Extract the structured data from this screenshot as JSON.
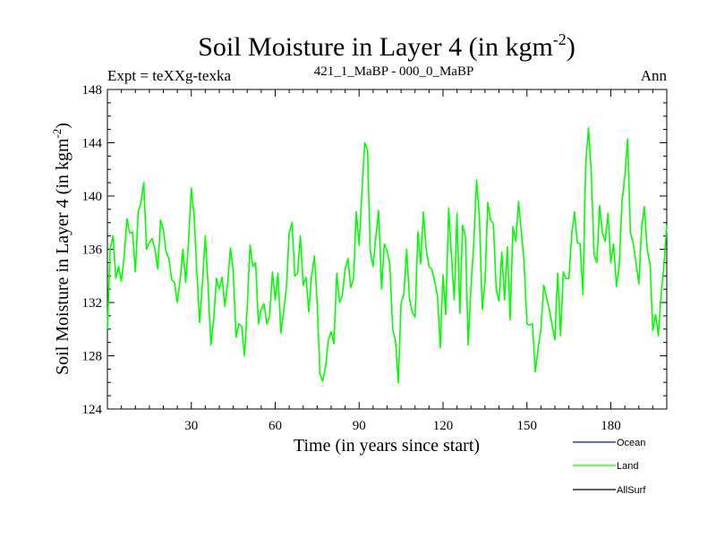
{
  "header": {
    "title_main": "Soil Moisture in Layer 4 (in kgm",
    "title_sup": "-2",
    "title_close": ")",
    "expt": "Expt = teXXg-texka",
    "period": "421_1_MaBP - 000_0_MaBP",
    "season": "Ann"
  },
  "colors": {
    "ocean": "#0000ff",
    "land": "#00ff00",
    "allsurf": "#000000",
    "axis": "#000000"
  },
  "chart_data": {
    "type": "line",
    "title": "Soil Moisture in Layer 4 (in kgm-2)",
    "xlabel": "Time (in years since start)",
    "ylabel_main": "Soil Moisture in Layer 4 (in kgm",
    "ylabel_sup": "-2",
    "ylabel_close": ")",
    "xlim": [
      0,
      200
    ],
    "ylim": [
      124,
      148
    ],
    "x_ticks": [
      30,
      60,
      90,
      120,
      150,
      180
    ],
    "x_tick_labels": [
      "30",
      "60",
      "90",
      "120",
      "150",
      "180"
    ],
    "y_ticks": [
      124,
      128,
      132,
      136,
      140,
      144,
      148
    ],
    "y_tick_labels": [
      "124",
      "128",
      "132",
      "136",
      "140",
      "144",
      "148"
    ],
    "legend": {
      "position": "bottom-right",
      "entries": [
        {
          "name": "Ocean",
          "color": "#0000ff"
        },
        {
          "name": "Land",
          "color": "#00ff00"
        },
        {
          "name": "AllSurf",
          "color": "#000000"
        }
      ]
    },
    "series": [
      {
        "name": "Land",
        "color": "#00ff00",
        "x": [
          0,
          1,
          2,
          3,
          4,
          5,
          6,
          7,
          8,
          9,
          10,
          11,
          12,
          13,
          14,
          15,
          16,
          17,
          18,
          19,
          20,
          21,
          22,
          23,
          24,
          25,
          26,
          27,
          28,
          29,
          30,
          31,
          32,
          33,
          34,
          35,
          36,
          37,
          38,
          39,
          40,
          41,
          42,
          43,
          44,
          45,
          46,
          47,
          48,
          49,
          50,
          51,
          52,
          53,
          54,
          55,
          56,
          57,
          58,
          59,
          60,
          61,
          62,
          63,
          64,
          65,
          66,
          67,
          68,
          69,
          70,
          71,
          72,
          73,
          74,
          75,
          76,
          77,
          78,
          79,
          80,
          81,
          82,
          83,
          84,
          85,
          86,
          87,
          88,
          89,
          90,
          91,
          92,
          93,
          94,
          95,
          96,
          97,
          98,
          99,
          100,
          101,
          102,
          103,
          104,
          105,
          106,
          107,
          108,
          109,
          110,
          111,
          112,
          113,
          114,
          115,
          116,
          117,
          118,
          119,
          120,
          121,
          122,
          123,
          124,
          125,
          126,
          127,
          128,
          129,
          130,
          131,
          132,
          133,
          134,
          135,
          136,
          137,
          138,
          139,
          140,
          141,
          142,
          143,
          144,
          145,
          146,
          147,
          148,
          149,
          150,
          151,
          152,
          153,
          154,
          155,
          156,
          157,
          158,
          159,
          160,
          161,
          162,
          163,
          164,
          165,
          166,
          167,
          168,
          169,
          170,
          171,
          172,
          173,
          174,
          175,
          176,
          177,
          178,
          179,
          180,
          181,
          182,
          183,
          184,
          185,
          186,
          187,
          188,
          189,
          190,
          191,
          192,
          193,
          194,
          195,
          196,
          197,
          198,
          199,
          200
        ],
        "values": [
          130.0,
          136.0,
          137.0,
          133.8,
          134.7,
          133.6,
          135.5,
          138.3,
          137.2,
          137.3,
          134.3,
          138.8,
          139.5,
          141.0,
          136.0,
          136.5,
          136.8,
          136.0,
          134.5,
          138.2,
          137.5,
          135.8,
          135.3,
          133.7,
          133.5,
          132.0,
          133.7,
          136.0,
          133.5,
          136.5,
          140.6,
          138.5,
          134.2,
          130.5,
          133.6,
          137.0,
          133.2,
          128.8,
          130.8,
          133.8,
          133.0,
          133.9,
          131.7,
          133.5,
          136.1,
          134.4,
          129.4,
          130.4,
          130.2,
          128.0,
          131.7,
          136.3,
          134.7,
          135.0,
          130.4,
          131.5,
          131.9,
          130.4,
          131.0,
          134.3,
          132.2,
          134.2,
          129.7,
          131.3,
          133.1,
          137.2,
          138.0,
          134.0,
          134.2,
          137.0,
          133.3,
          133.9,
          131.3,
          134.0,
          135.5,
          132.0,
          126.6,
          126.1,
          127.2,
          129.2,
          129.8,
          128.9,
          134.2,
          132.0,
          132.5,
          134.5,
          135.3,
          133.1,
          133.8,
          138.8,
          136.3,
          140.3,
          144.0,
          143.5,
          135.8,
          134.7,
          137.0,
          138.9,
          133.0,
          136.4,
          135.9,
          134.8,
          130.0,
          129.1,
          126.0,
          131.9,
          132.7,
          136.0,
          132.3,
          131.3,
          130.9,
          137.3,
          134.9,
          138.8,
          136.0,
          134.7,
          134.5,
          133.6,
          132.5,
          128.6,
          134.1,
          131.1,
          139.1,
          135.5,
          132.2,
          138.7,
          131.2,
          137.8,
          137.0,
          128.8,
          133.2,
          136.5,
          141.2,
          138.5,
          131.5,
          133.5,
          139.5,
          138.2,
          137.9,
          133.0,
          132.1,
          135.8,
          132.2,
          136.2,
          130.7,
          137.7,
          136.6,
          139.6,
          137.3,
          135.0,
          130.4,
          130.3,
          130.4,
          126.8,
          128.6,
          130.0,
          133.3,
          132.4,
          131.5,
          130.3,
          129.2,
          134.2,
          129.5,
          134.3,
          133.8,
          133.8,
          137.1,
          138.8,
          136.5,
          136.4,
          132.6,
          142.3,
          145.1,
          141.8,
          135.6,
          135.0,
          139.3,
          137.2,
          136.6,
          138.7,
          135.0,
          136.4,
          133.2,
          134.8,
          139.6,
          141.5,
          144.3,
          137.2,
          136.5,
          135.0,
          133.4,
          137.6,
          139.2,
          136.0,
          134.9,
          129.9,
          131.1,
          129.5,
          132.7,
          134.8,
          137.8
        ]
      },
      {
        "name": "Ocean",
        "color": "#0000ff",
        "values": []
      },
      {
        "name": "AllSurf",
        "color": "#000000",
        "values": []
      }
    ]
  }
}
